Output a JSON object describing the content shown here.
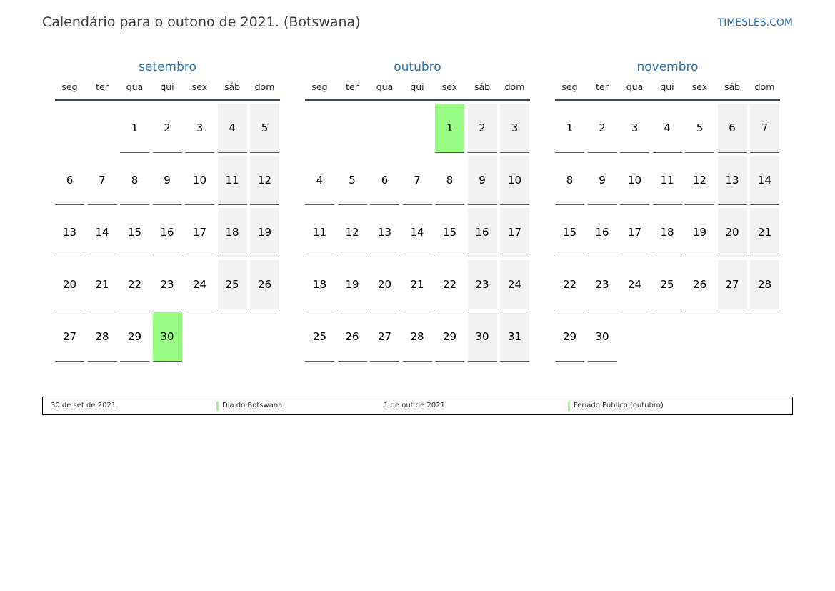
{
  "title": "Calendário para o outono de 2021. (Botswana)",
  "brand": "TIMESLES.COM",
  "colors": {
    "accent": "#2e75b6",
    "holiday": "#98fb84",
    "weekend": "#f2f2f2"
  },
  "weekdays": [
    "seg",
    "ter",
    "qua",
    "qui",
    "sex",
    "sáb",
    "dom"
  ],
  "months": [
    {
      "name": "setembro",
      "first_weekday": 2,
      "days": 30,
      "holidays": [
        30
      ]
    },
    {
      "name": "outubro",
      "first_weekday": 4,
      "days": 31,
      "holidays": [
        1
      ]
    },
    {
      "name": "novembro",
      "first_weekday": 0,
      "days": 30,
      "holidays": []
    }
  ],
  "legend": [
    {
      "date": "30 de set de 2021",
      "name": "Dia do Botswana"
    },
    {
      "date": "1 de out de 2021",
      "name": "Feriado Público (outubro)"
    }
  ]
}
